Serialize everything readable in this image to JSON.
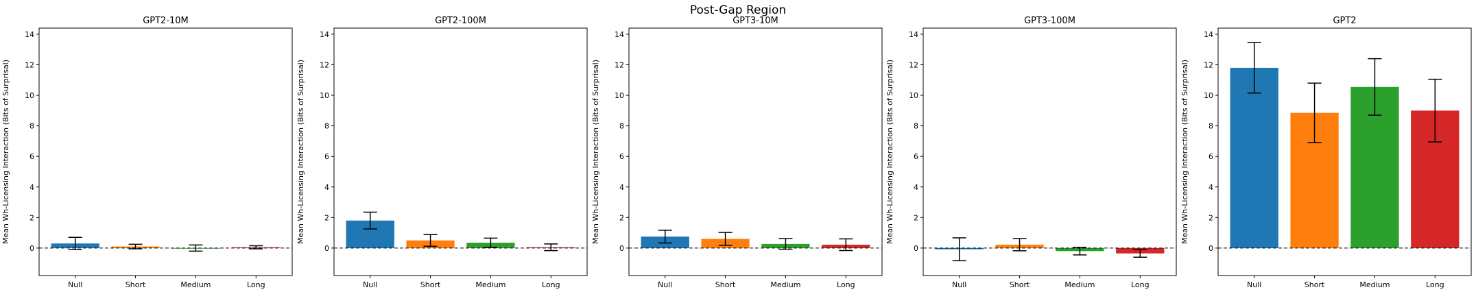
{
  "figure_title": "Post-Gap Region",
  "colors": {
    "Null": "#1f77b4",
    "Short": "#ff7f0e",
    "Medium": "#2ca02c",
    "Long": "#d62728"
  },
  "chart_data": [
    {
      "type": "bar",
      "title": "GPT2-10M",
      "categories": [
        "Null",
        "Short",
        "Medium",
        "Long"
      ],
      "values": [
        0.3,
        0.1,
        0.0,
        0.05
      ],
      "errors": [
        0.4,
        0.15,
        0.2,
        0.1
      ],
      "ylabel": "Mean Wh-Licensing Interaction (Bits of Surprisal)",
      "xlabel": "",
      "ylim": [
        -1.8,
        14.4
      ],
      "yticks": [
        0,
        2,
        4,
        6,
        8,
        10,
        12,
        14
      ],
      "reference_line": 0
    },
    {
      "type": "bar",
      "title": "GPT2-100M",
      "categories": [
        "Null",
        "Short",
        "Medium",
        "Long"
      ],
      "values": [
        1.8,
        0.5,
        0.35,
        0.05
      ],
      "errors": [
        0.55,
        0.38,
        0.3,
        0.22
      ],
      "ylabel": "Mean Wh-Licensing Interaction (Bits of Surprisal)",
      "xlabel": "",
      "ylim": [
        -1.8,
        14.4
      ],
      "yticks": [
        0,
        2,
        4,
        6,
        8,
        10,
        12,
        14
      ],
      "reference_line": 0
    },
    {
      "type": "bar",
      "title": "GPT3-10M",
      "categories": [
        "Null",
        "Short",
        "Medium",
        "Long"
      ],
      "values": [
        0.75,
        0.6,
        0.27,
        0.22
      ],
      "errors": [
        0.42,
        0.42,
        0.35,
        0.38
      ],
      "ylabel": "Mean Wh-Licensing Interaction (Bits of Surprisal)",
      "xlabel": "",
      "ylim": [
        -1.8,
        14.4
      ],
      "yticks": [
        0,
        2,
        4,
        6,
        8,
        10,
        12,
        14
      ],
      "reference_line": 0
    },
    {
      "type": "bar",
      "title": "GPT3-100M",
      "categories": [
        "Null",
        "Short",
        "Medium",
        "Long"
      ],
      "values": [
        -0.08,
        0.22,
        -0.2,
        -0.35
      ],
      "errors": [
        0.75,
        0.4,
        0.25,
        0.25
      ],
      "ylabel": "Mean Wh-Licensing Interaction (Bits of Surprisal)",
      "xlabel": "",
      "ylim": [
        -1.8,
        14.4
      ],
      "yticks": [
        0,
        2,
        4,
        6,
        8,
        10,
        12,
        14
      ],
      "reference_line": 0
    },
    {
      "type": "bar",
      "title": "GPT2",
      "categories": [
        "Null",
        "Short",
        "Medium",
        "Long"
      ],
      "values": [
        11.8,
        8.85,
        10.55,
        9.0
      ],
      "errors": [
        1.65,
        1.95,
        1.85,
        2.05
      ],
      "ylabel": "Mean Wh-Licensing Interaction (Bits of Surprisal)",
      "xlabel": "",
      "ylim": [
        -1.8,
        14.4
      ],
      "yticks": [
        0,
        2,
        4,
        6,
        8,
        10,
        12,
        14
      ],
      "reference_line": 0
    }
  ]
}
